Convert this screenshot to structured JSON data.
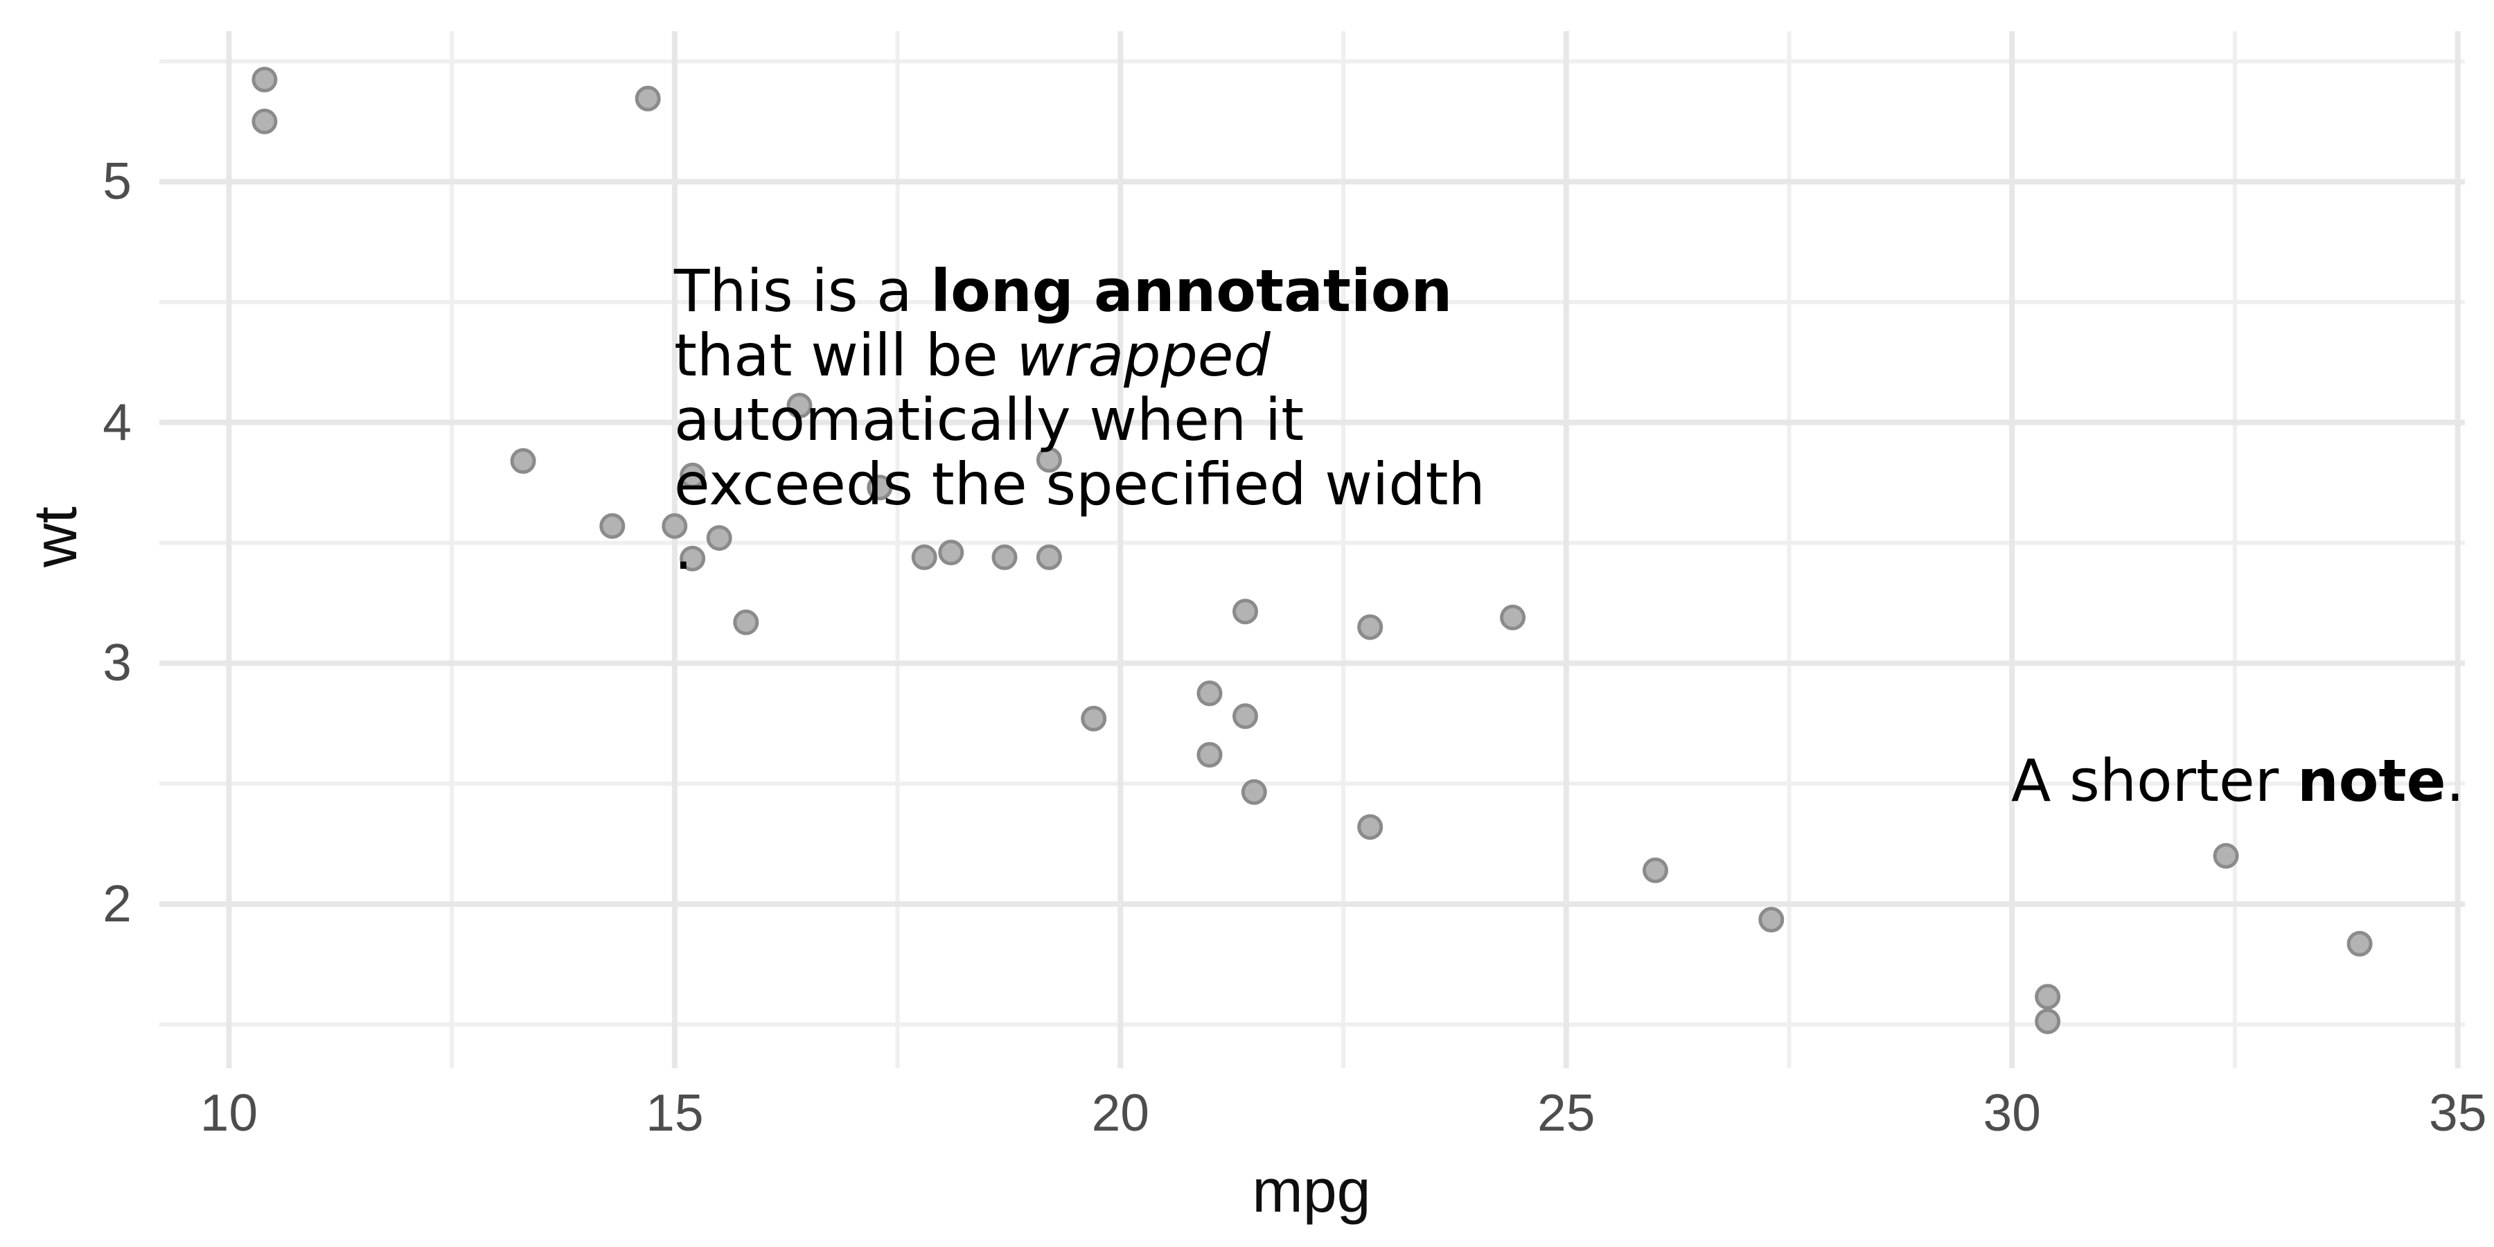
{
  "chart_data": {
    "type": "scatter",
    "title": "",
    "xlabel": "mpg",
    "ylabel": "wt",
    "x_ticks": [
      10,
      15,
      20,
      25,
      30,
      35
    ],
    "x_minor_ticks": [
      12.5,
      17.5,
      22.5,
      27.5,
      32.5
    ],
    "y_ticks": [
      2,
      3,
      4,
      5
    ],
    "y_minor_ticks": [
      1.5,
      2.5,
      3.5,
      4.5,
      5.5
    ],
    "xlim": [
      9.22,
      35.08
    ],
    "ylim": [
      1.318,
      5.625
    ],
    "grid": "major+minor",
    "legend": false,
    "points": [
      {
        "mpg": 21.0,
        "wt": 2.62
      },
      {
        "mpg": 21.0,
        "wt": 2.875
      },
      {
        "mpg": 22.8,
        "wt": 2.32
      },
      {
        "mpg": 21.4,
        "wt": 3.215
      },
      {
        "mpg": 18.7,
        "wt": 3.44
      },
      {
        "mpg": 18.1,
        "wt": 3.46
      },
      {
        "mpg": 14.3,
        "wt": 3.57
      },
      {
        "mpg": 24.4,
        "wt": 3.19
      },
      {
        "mpg": 22.8,
        "wt": 3.15
      },
      {
        "mpg": 19.2,
        "wt": 3.44
      },
      {
        "mpg": 17.8,
        "wt": 3.44
      },
      {
        "mpg": 16.4,
        "wt": 4.07
      },
      {
        "mpg": 17.3,
        "wt": 3.73
      },
      {
        "mpg": 15.2,
        "wt": 3.78
      },
      {
        "mpg": 10.4,
        "wt": 5.25
      },
      {
        "mpg": 10.4,
        "wt": 5.424
      },
      {
        "mpg": 14.7,
        "wt": 5.345
      },
      {
        "mpg": 32.4,
        "wt": 2.2
      },
      {
        "mpg": 30.4,
        "wt": 1.615
      },
      {
        "mpg": 33.9,
        "wt": 1.835
      },
      {
        "mpg": 21.5,
        "wt": 2.465
      },
      {
        "mpg": 15.5,
        "wt": 3.52
      },
      {
        "mpg": 15.2,
        "wt": 3.435
      },
      {
        "mpg": 13.3,
        "wt": 3.84
      },
      {
        "mpg": 19.2,
        "wt": 3.845
      },
      {
        "mpg": 27.3,
        "wt": 1.935
      },
      {
        "mpg": 26.0,
        "wt": 2.14
      },
      {
        "mpg": 30.4,
        "wt": 1.513
      },
      {
        "mpg": 15.8,
        "wt": 3.17
      },
      {
        "mpg": 19.7,
        "wt": 2.77
      },
      {
        "mpg": 15.0,
        "wt": 3.57
      },
      {
        "mpg": 21.4,
        "wt": 2.78
      }
    ],
    "annotations": [
      {
        "markdown": "This is a **long annotation** that will be *wrapped* automatically when it exceeds the specified width .",
        "lines": [
          [
            {
              "t": "This is a ",
              "s": "normal"
            },
            {
              "t": "long annotation",
              "s": "bold"
            }
          ],
          [
            {
              "t": "that will be ",
              "s": "normal"
            },
            {
              "t": "wrapped",
              "s": "italic"
            }
          ],
          [
            {
              "t": "automatically when it",
              "s": "normal"
            }
          ],
          [
            {
              "t": "exceeds the specified width",
              "s": "normal"
            }
          ],
          [
            {
              "t": ".",
              "s": "normal"
            }
          ]
        ]
      },
      {
        "markdown": "A shorter **note**.",
        "lines": [
          [
            {
              "t": "A shorter ",
              "s": "normal"
            },
            {
              "t": "note",
              "s": "bold"
            },
            {
              "t": ".",
              "s": "normal"
            }
          ]
        ]
      }
    ]
  },
  "style": {
    "background": "#ffffff",
    "grid_major_color": "#e7e7e7",
    "grid_minor_color": "#efefef",
    "point_fill": "#b3b3b3",
    "point_stroke": "#8b8b8b",
    "tick_label_color": "#4d4d4d",
    "axis_title_color": "#0f0f0f",
    "annotation_color": "#000000"
  }
}
